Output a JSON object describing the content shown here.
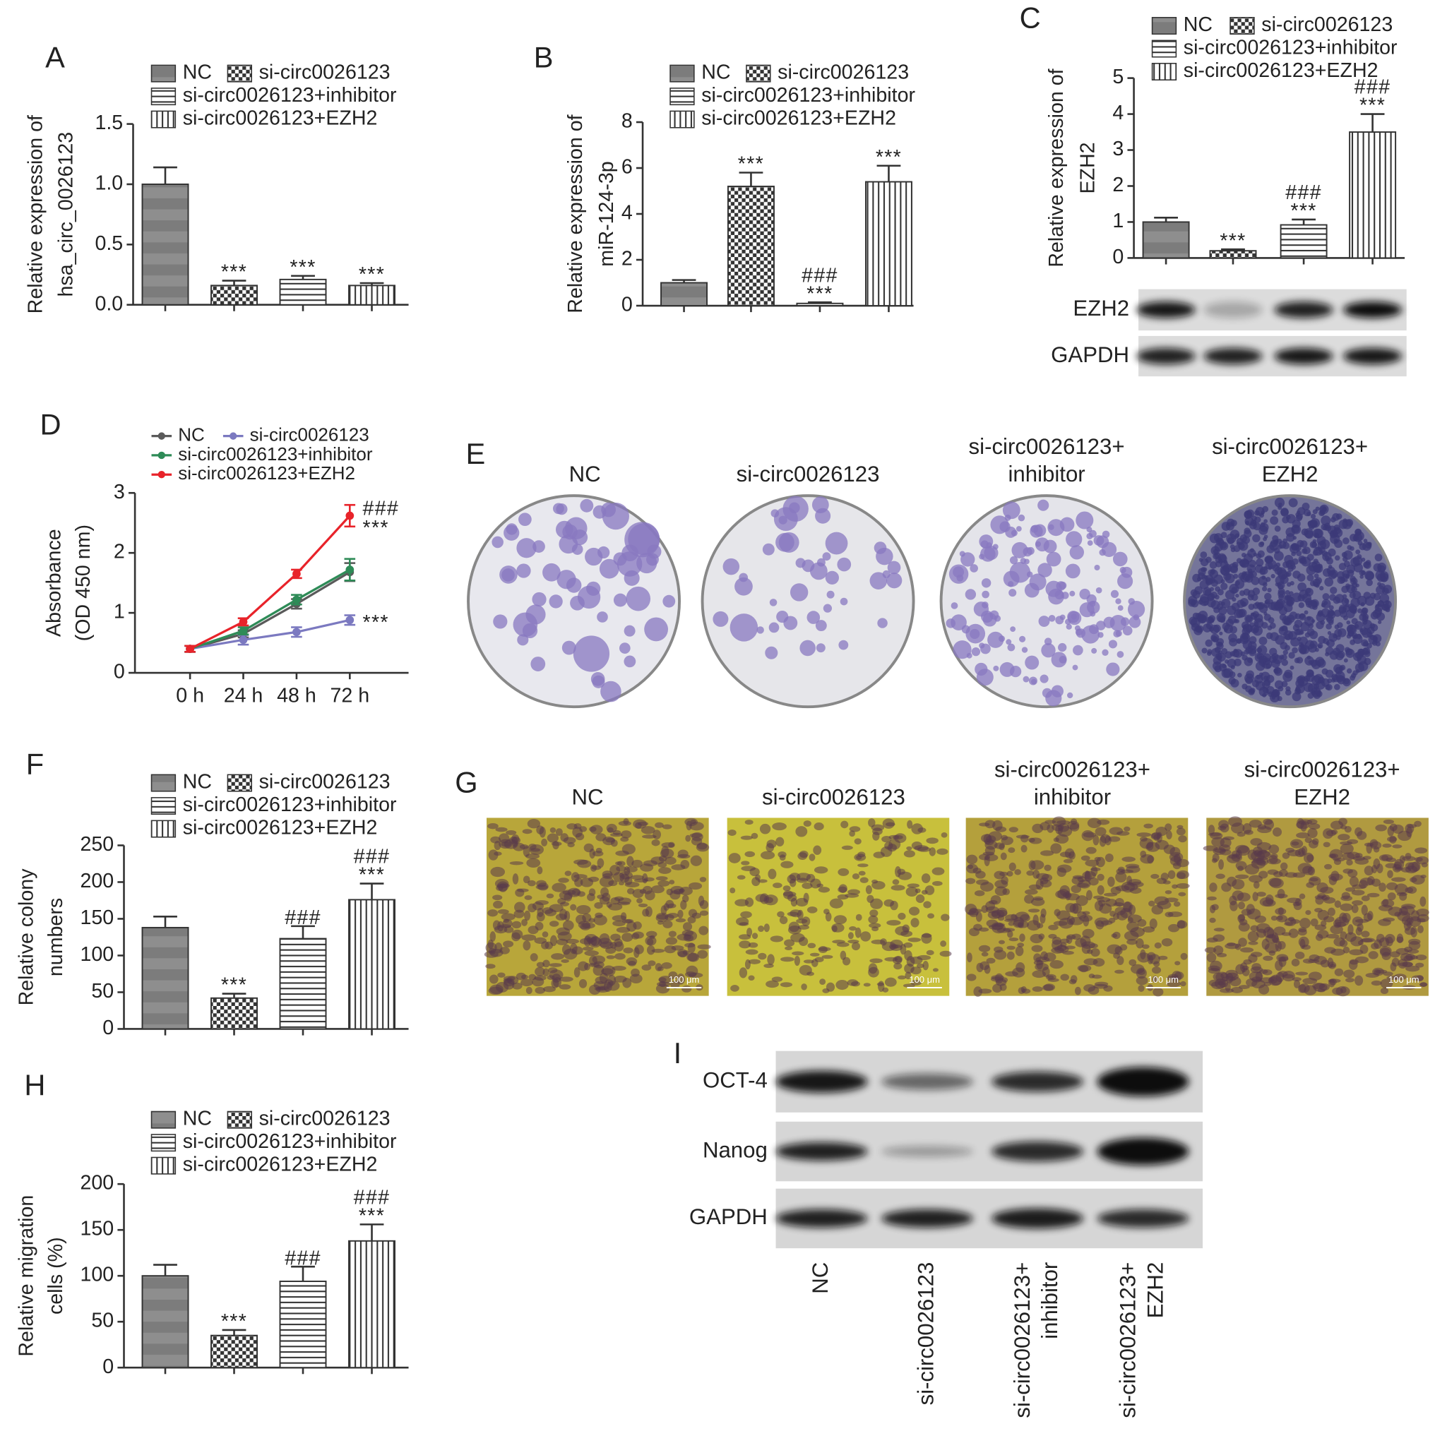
{
  "chart_data": [
    {
      "type": "bar",
      "panel": "A",
      "ylabel": [
        "Relative expression of",
        "hsa_circ_0026123"
      ],
      "ylim": [
        0,
        1.5
      ],
      "yticks": [
        {
          "value": 0,
          "label": "0.0"
        },
        0.5,
        {
          "value": 1,
          "label": "1.0"
        },
        1.5
      ],
      "series": [
        {
          "name": "NC",
          "pattern": "gray",
          "values": [
            1.0
          ],
          "errors": [
            0.14
          ]
        },
        {
          "name": "si-circ0026123",
          "pattern": "checker",
          "values": [
            0.16
          ],
          "errors": [
            0.04
          ],
          "annotation": [
            "***"
          ]
        },
        {
          "name": "si-circ0026123+inhibitor",
          "pattern": "hlines",
          "values": [
            0.21
          ],
          "errors": [
            0.03
          ],
          "annotation": [
            "***"
          ]
        },
        {
          "name": "si-circ0026123+EZH2",
          "pattern": "vlines",
          "values": [
            0.16
          ],
          "errors": [
            0.02
          ],
          "annotation": [
            "***"
          ]
        }
      ]
    },
    {
      "type": "bar",
      "panel": "B",
      "ylabel": [
        "Relative expression of",
        "miR-124-3p"
      ],
      "ylim": [
        0,
        8
      ],
      "yticks": [
        0,
        2,
        4,
        6,
        8
      ],
      "series": [
        {
          "name": "NC",
          "pattern": "gray",
          "values": [
            1.0
          ],
          "errors": [
            0.12
          ]
        },
        {
          "name": "si-circ0026123",
          "pattern": "checker",
          "values": [
            5.2
          ],
          "errors": [
            0.6
          ],
          "annotation": [
            "***"
          ]
        },
        {
          "name": "si-circ0026123+inhibitor",
          "pattern": "hlines",
          "values": [
            0.1
          ],
          "errors": [
            0.05
          ],
          "annotation": [
            "###",
            "***"
          ]
        },
        {
          "name": "si-circ0026123+EZH2",
          "pattern": "vlines",
          "values": [
            5.4
          ],
          "errors": [
            0.7
          ],
          "annotation": [
            "***"
          ]
        }
      ]
    },
    {
      "type": "bar",
      "panel": "C",
      "ylabel": [
        "Relative expression of",
        "EZH2"
      ],
      "ylim": [
        0,
        5
      ],
      "yticks": [
        0,
        1,
        2,
        3,
        4,
        5
      ],
      "blot_rows": [
        "EZH2",
        "GAPDH"
      ],
      "series": [
        {
          "name": "NC",
          "pattern": "gray",
          "values": [
            1.0
          ],
          "errors": [
            0.12
          ]
        },
        {
          "name": "si-circ0026123",
          "pattern": "checker",
          "values": [
            0.2
          ],
          "errors": [
            0.04
          ],
          "annotation": [
            "***"
          ]
        },
        {
          "name": "si-circ0026123+inhibitor",
          "pattern": "hlines",
          "values": [
            0.92
          ],
          "errors": [
            0.15
          ],
          "annotation": [
            "###",
            "***"
          ]
        },
        {
          "name": "si-circ0026123+EZH2",
          "pattern": "vlines",
          "values": [
            3.5
          ],
          "errors": [
            0.5
          ],
          "annotation": [
            "###",
            "***"
          ]
        }
      ]
    },
    {
      "type": "line",
      "panel": "D",
      "ylabel": [
        "Absorbance",
        "(OD 450 nm)"
      ],
      "categories": [
        "0 h",
        "24 h",
        "48 h",
        "72 h"
      ],
      "ylim": [
        0,
        3
      ],
      "yticks": [
        0,
        1,
        2,
        3
      ],
      "series": [
        {
          "name": "NC",
          "color": "#5a5a5a",
          "values": [
            0.4,
            0.65,
            1.15,
            1.68
          ],
          "errors": [
            0.05,
            0.06,
            0.08,
            0.15
          ]
        },
        {
          "name": "si-circ0026123",
          "color": "#7b79c0",
          "values": [
            0.4,
            0.55,
            0.68,
            0.88
          ],
          "errors": [
            0.05,
            0.08,
            0.08,
            0.08
          ],
          "annotation": [
            "***"
          ]
        },
        {
          "name": "si-circ0026123+inhibitor",
          "color": "#2e8b57",
          "values": [
            0.4,
            0.7,
            1.22,
            1.72
          ],
          "errors": [
            0.05,
            0.06,
            0.08,
            0.18
          ]
        },
        {
          "name": "si-circ0026123+EZH2",
          "color": "#e8232a",
          "values": [
            0.4,
            0.85,
            1.65,
            2.62
          ],
          "errors": [
            0.05,
            0.06,
            0.07,
            0.18
          ],
          "annotation": [
            "###",
            "***"
          ]
        }
      ]
    },
    {
      "type": "bar",
      "panel": "F",
      "ylabel": [
        "Relative colony",
        "numbers"
      ],
      "ylim": [
        0,
        250
      ],
      "yticks": [
        0,
        50,
        100,
        150,
        200,
        250
      ],
      "series": [
        {
          "name": "NC",
          "pattern": "gray",
          "values": [
            138
          ],
          "errors": [
            15
          ]
        },
        {
          "name": "si-circ0026123",
          "pattern": "checker",
          "values": [
            42
          ],
          "errors": [
            6
          ],
          "annotation": [
            "***"
          ]
        },
        {
          "name": "si-circ0026123+inhibitor",
          "pattern": "hlines",
          "values": [
            123
          ],
          "errors": [
            17
          ],
          "annotation": [
            "###"
          ]
        },
        {
          "name": "si-circ0026123+EZH2",
          "pattern": "vlines",
          "values": [
            176
          ],
          "errors": [
            22
          ],
          "annotation": [
            "###",
            "***"
          ]
        }
      ]
    },
    {
      "type": "bar",
      "panel": "H",
      "ylabel": [
        "Relative migration",
        "cells (%)"
      ],
      "ylim": [
        0,
        200
      ],
      "yticks": [
        0,
        50,
        100,
        150,
        200
      ],
      "series": [
        {
          "name": "NC",
          "pattern": "gray",
          "values": [
            100
          ],
          "errors": [
            12
          ]
        },
        {
          "name": "si-circ0026123",
          "pattern": "checker",
          "values": [
            35
          ],
          "errors": [
            6
          ],
          "annotation": [
            "***"
          ]
        },
        {
          "name": "si-circ0026123+inhibitor",
          "pattern": "hlines",
          "values": [
            94
          ],
          "errors": [
            16
          ],
          "annotation": [
            "###"
          ]
        },
        {
          "name": "si-circ0026123+EZH2",
          "pattern": "vlines",
          "values": [
            138
          ],
          "errors": [
            18
          ],
          "annotation": [
            "###",
            "***"
          ]
        }
      ]
    }
  ],
  "colony_panel": {
    "panel": "E",
    "labels": [
      [
        "NC"
      ],
      [
        "si-circ0026123"
      ],
      [
        "si-circ0026123+",
        "inhibitor"
      ],
      [
        "si-circ0026123+",
        "EZH2"
      ]
    ]
  },
  "migration_panel": {
    "panel": "G",
    "labels": [
      [
        "NC"
      ],
      [
        "si-circ0026123"
      ],
      [
        "si-circ0026123+",
        "inhibitor"
      ],
      [
        "si-circ0026123+",
        "EZH2"
      ]
    ],
    "scale_bar": "100 μm"
  },
  "blot_panel": {
    "panel": "I",
    "rows": [
      "OCT-4",
      "Nanog",
      "GAPDH"
    ],
    "lanes": [
      [
        "NC"
      ],
      [
        "si-circ0026123"
      ],
      [
        "si-circ0026123+",
        "inhibitor"
      ],
      [
        "si-circ0026123+",
        "EZH2"
      ]
    ]
  }
}
